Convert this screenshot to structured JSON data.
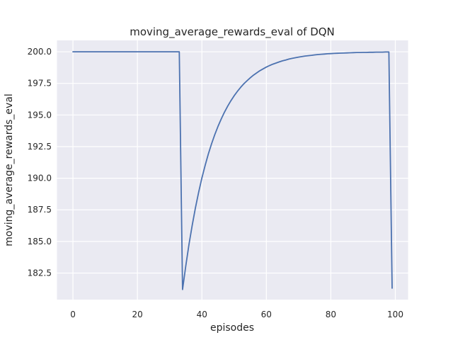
{
  "colors": {
    "figure_background": "#FFFFFF",
    "axes_background": "#EAEAF2",
    "grid": "#FFFFFF",
    "line": "#4C72B0",
    "text": "#262626"
  },
  "chart_data": {
    "type": "line",
    "title": "moving_average_rewards_eval of DQN",
    "xlabel": "episodes",
    "ylabel": "moving_average_rewards_eval",
    "legend": null,
    "grid": true,
    "series_name": "moving_average_rewards_eval",
    "line_color": "#4C72B0",
    "x_start": 0,
    "x_step": 1,
    "values": [
      200.0,
      200.0,
      200.0,
      200.0,
      200.0,
      200.0,
      200.0,
      200.0,
      200.0,
      200.0,
      200.0,
      200.0,
      200.0,
      200.0,
      200.0,
      200.0,
      200.0,
      200.0,
      200.0,
      200.0,
      200.0,
      200.0,
      200.0,
      200.0,
      200.0,
      200.0,
      200.0,
      200.0,
      200.0,
      200.0,
      200.0,
      200.0,
      200.0,
      200.0,
      181.2,
      183.08,
      184.77,
      186.29,
      187.66,
      188.9,
      190.01,
      191.01,
      191.91,
      192.72,
      193.44,
      194.1,
      194.69,
      195.22,
      195.7,
      196.13,
      196.52,
      196.86,
      197.18,
      197.46,
      197.71,
      197.94,
      198.15,
      198.33,
      198.5,
      198.65,
      198.79,
      198.91,
      199.02,
      199.11,
      199.2,
      199.28,
      199.35,
      199.42,
      199.48,
      199.53,
      199.58,
      199.62,
      199.66,
      199.69,
      199.72,
      199.75,
      199.78,
      199.8,
      199.82,
      199.84,
      199.85,
      199.87,
      199.88,
      199.89,
      199.9,
      199.91,
      199.92,
      199.93,
      199.94,
      199.94,
      199.95,
      199.95,
      199.96,
      199.96,
      199.97,
      199.97,
      199.97,
      199.98,
      199.98,
      181.3
    ],
    "xlim": [
      -4.95,
      103.95
    ],
    "ylim": [
      180.4,
      200.9
    ],
    "xticks": [
      0,
      20,
      40,
      60,
      80,
      100
    ],
    "xtick_labels": [
      "0",
      "20",
      "40",
      "60",
      "80",
      "100"
    ],
    "yticks": [
      182.5,
      185.0,
      187.5,
      190.0,
      192.5,
      195.0,
      197.5,
      200.0
    ],
    "ytick_labels": [
      "182.5",
      "185.0",
      "187.5",
      "190.0",
      "192.5",
      "195.0",
      "197.5",
      "200.0"
    ]
  }
}
